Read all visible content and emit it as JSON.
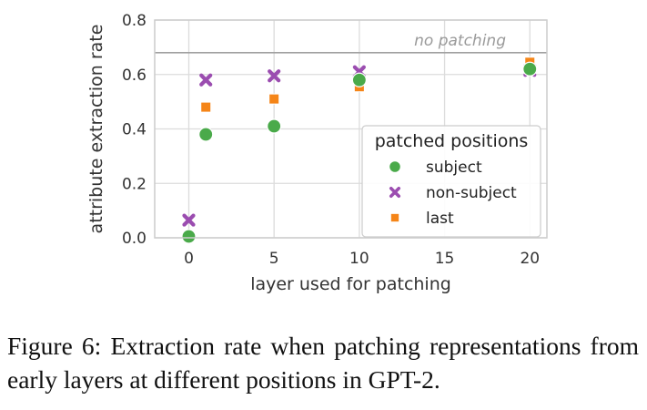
{
  "chart_data": {
    "type": "scatter",
    "xlabel": "layer used for patching",
    "ylabel": "attribute extraction rate",
    "xlim": [
      -2,
      21
    ],
    "ylim": [
      0,
      0.8
    ],
    "xticks": [
      0,
      5,
      10,
      15,
      20
    ],
    "xtick_labels": [
      "0",
      "5",
      "10",
      "15",
      "20"
    ],
    "yticks": [
      0.0,
      0.2,
      0.4,
      0.6,
      0.8
    ],
    "ytick_labels": [
      "0.0",
      "0.2",
      "0.4",
      "0.6",
      "0.8"
    ],
    "grid": true,
    "legend_title": "patched positions",
    "legend_position": "lower-right",
    "reference_line": {
      "y": 0.68,
      "label": "no patching",
      "color": "#a0a0a0"
    },
    "series": [
      {
        "name": "non-subject",
        "marker": "x",
        "color": "#9b4db0",
        "x": [
          0,
          1,
          5,
          10,
          20
        ],
        "y": [
          0.065,
          0.58,
          0.595,
          0.61,
          0.615
        ]
      },
      {
        "name": "last",
        "marker": "square",
        "color": "#f58518",
        "x": [
          0,
          1,
          5,
          10,
          20
        ],
        "y": [
          0.0,
          0.48,
          0.51,
          0.555,
          0.645
        ]
      },
      {
        "name": "subject",
        "marker": "circle",
        "color": "#4aaa4a",
        "x": [
          0,
          1,
          5,
          10,
          20
        ],
        "y": [
          0.005,
          0.38,
          0.41,
          0.58,
          0.62
        ]
      }
    ]
  },
  "caption": "Figure 6:  Extraction rate when patching representations from early layers at different positions in GPT-2."
}
